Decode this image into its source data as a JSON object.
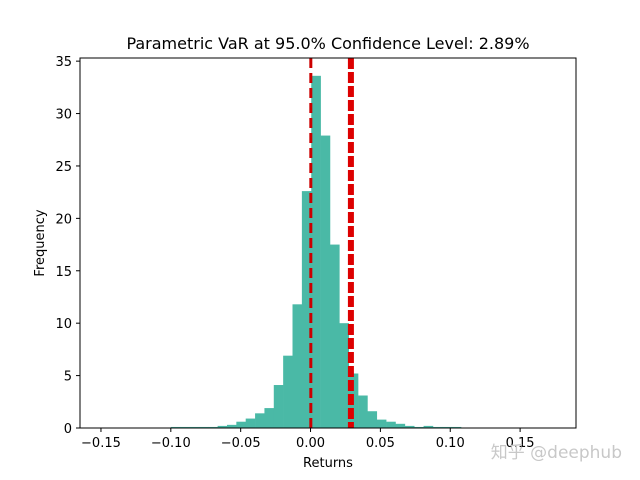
{
  "chart_data": {
    "type": "bar",
    "title": "Parametric VaR at 95.0% Confidence Level: 2.89%",
    "xlabel": "Returns",
    "ylabel": "Frequency",
    "xlim": [
      -0.165,
      0.19
    ],
    "ylim": [
      0,
      35.3
    ],
    "xticks": [
      -0.15,
      -0.1,
      -0.05,
      0.0,
      0.05,
      0.1,
      0.15
    ],
    "xtick_labels": [
      "−0.15",
      "−0.10",
      "−0.05",
      "0.00",
      "0.05",
      "0.10",
      "0.15"
    ],
    "yticks": [
      0,
      5,
      10,
      15,
      20,
      25,
      30,
      35
    ],
    "ytick_labels": [
      "0",
      "5",
      "10",
      "15",
      "20",
      "25",
      "30",
      "35"
    ],
    "bin_width": 0.0067,
    "bin_starts": [
      -0.1,
      -0.0933,
      -0.0866,
      -0.0799,
      -0.0732,
      -0.0665,
      -0.0598,
      -0.0531,
      -0.0464,
      -0.0397,
      -0.033,
      -0.0263,
      -0.0196,
      -0.0129,
      -0.0062,
      0.0005,
      0.0072,
      0.0139,
      0.0206,
      0.0273,
      0.034,
      0.0407,
      0.0474,
      0.0541,
      0.0608,
      0.0675,
      0.0742,
      0.0809,
      0.0876,
      0.0943,
      0.101
    ],
    "values": [
      0.1,
      0.1,
      0.1,
      0.1,
      0.1,
      0.2,
      0.3,
      0.6,
      0.9,
      1.4,
      1.9,
      4.1,
      6.9,
      11.8,
      22.6,
      33.6,
      27.9,
      17.5,
      10.0,
      5.2,
      3.1,
      1.6,
      0.8,
      0.6,
      0.4,
      0.2,
      0.1,
      0.2,
      0.1,
      0.1,
      0.1
    ],
    "bar_color": "#4ab9a6",
    "lines": [
      {
        "name": "mean",
        "x": 0.0002,
        "color": "#cc0000",
        "style": "dashed"
      },
      {
        "name": "VaR",
        "x": 0.0289,
        "color": "#dd0000",
        "style": "dashed-thick"
      }
    ]
  },
  "watermark": "知乎 @deephub"
}
